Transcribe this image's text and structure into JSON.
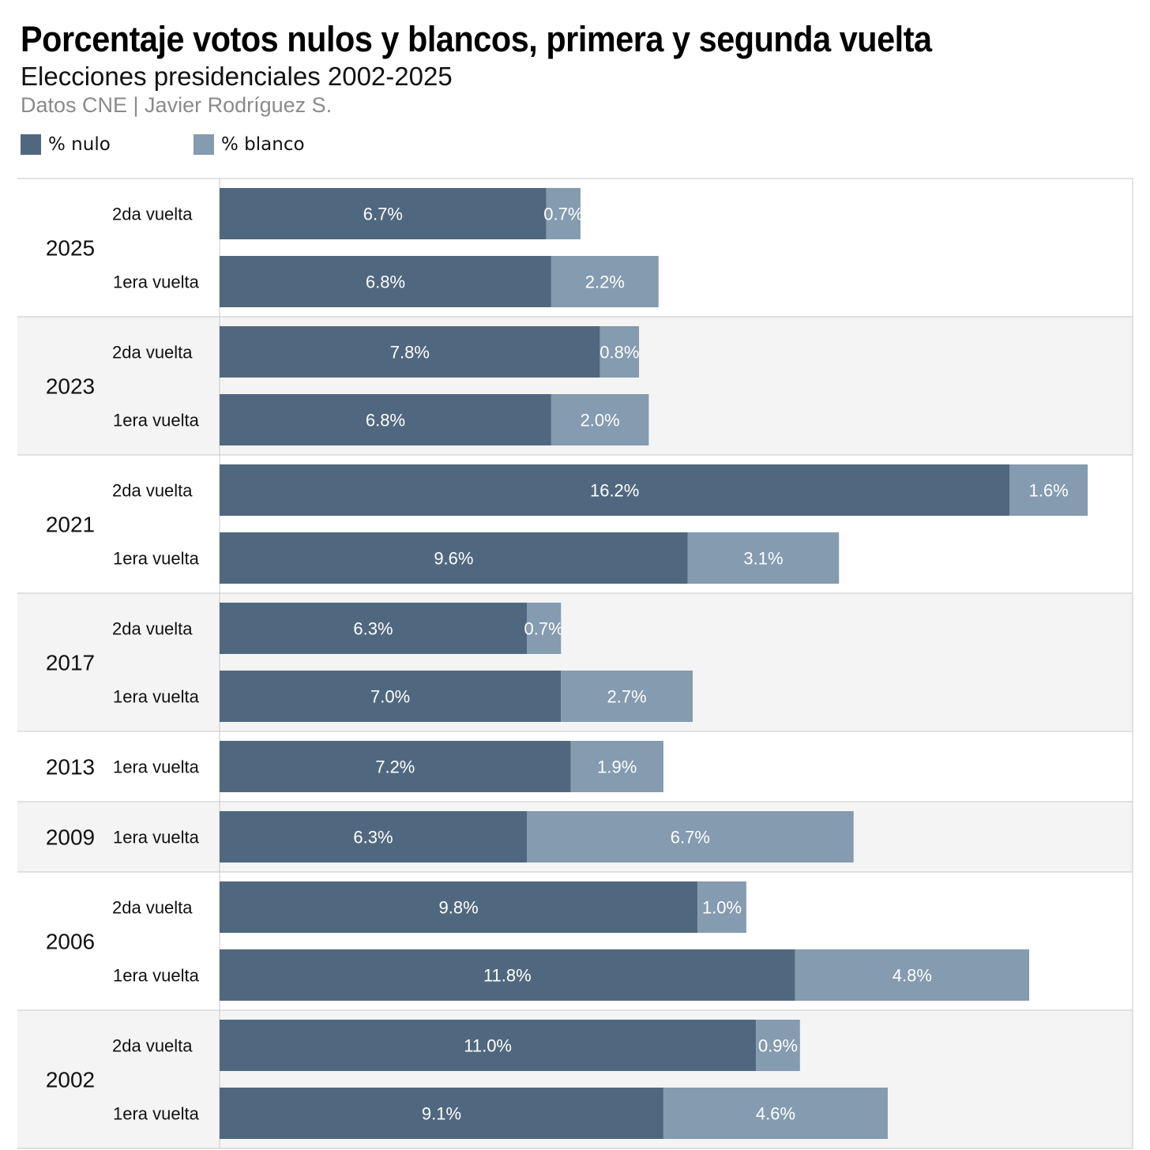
{
  "colors": {
    "nulo": "#50687f",
    "blanco": "#849bb0",
    "band_alt": "#f4f4f4",
    "border": "#c8c8c8",
    "bar_text": "#ffffff"
  },
  "chart_data": {
    "type": "bar",
    "orientation": "horizontal",
    "stacked": true,
    "title": "Porcentaje votos nulos y blancos, primera y segunda vuelta",
    "subtitle": "Elecciones presidenciales 2002-2025",
    "source": "Datos CNE | Javier Rodríguez S.",
    "xlim": [
      0,
      18
    ],
    "legend_position": "top-left",
    "grid": false,
    "series": [
      {
        "name": "% nulo",
        "key": "nulo"
      },
      {
        "name": "% blanco",
        "key": "blanco"
      }
    ],
    "groups": [
      {
        "year": "2025",
        "rows": [
          {
            "label": "2da vuelta",
            "nulo": 6.7,
            "blanco": 0.7,
            "nulo_label": "6.7%",
            "blanco_label": "0.7%"
          },
          {
            "label": "1era vuelta",
            "nulo": 6.8,
            "blanco": 2.2,
            "nulo_label": "6.8%",
            "blanco_label": "2.2%"
          }
        ]
      },
      {
        "year": "2023",
        "rows": [
          {
            "label": "2da vuelta",
            "nulo": 7.8,
            "blanco": 0.8,
            "nulo_label": "7.8%",
            "blanco_label": "0.8%"
          },
          {
            "label": "1era vuelta",
            "nulo": 6.8,
            "blanco": 2.0,
            "nulo_label": "6.8%",
            "blanco_label": "2.0%"
          }
        ]
      },
      {
        "year": "2021",
        "rows": [
          {
            "label": "2da vuelta",
            "nulo": 16.2,
            "blanco": 1.6,
            "nulo_label": "16.2%",
            "blanco_label": "1.6%"
          },
          {
            "label": "1era vuelta",
            "nulo": 9.6,
            "blanco": 3.1,
            "nulo_label": "9.6%",
            "blanco_label": "3.1%"
          }
        ]
      },
      {
        "year": "2017",
        "rows": [
          {
            "label": "2da vuelta",
            "nulo": 6.3,
            "blanco": 0.7,
            "nulo_label": "6.3%",
            "blanco_label": "0.7%"
          },
          {
            "label": "1era vuelta",
            "nulo": 7.0,
            "blanco": 2.7,
            "nulo_label": "7.0%",
            "blanco_label": "2.7%"
          }
        ]
      },
      {
        "year": "2013",
        "rows": [
          {
            "label": "1era vuelta",
            "nulo": 7.2,
            "blanco": 1.9,
            "nulo_label": "7.2%",
            "blanco_label": "1.9%"
          }
        ]
      },
      {
        "year": "2009",
        "rows": [
          {
            "label": "1era vuelta",
            "nulo": 6.3,
            "blanco": 6.7,
            "nulo_label": "6.3%",
            "blanco_label": "6.7%"
          }
        ]
      },
      {
        "year": "2006",
        "rows": [
          {
            "label": "2da vuelta",
            "nulo": 9.8,
            "blanco": 1.0,
            "nulo_label": "9.8%",
            "blanco_label": "1.0%"
          },
          {
            "label": "1era vuelta",
            "nulo": 11.8,
            "blanco": 4.8,
            "nulo_label": "11.8%",
            "blanco_label": "4.8%"
          }
        ]
      },
      {
        "year": "2002",
        "rows": [
          {
            "label": "2da vuelta",
            "nulo": 11.0,
            "blanco": 0.9,
            "nulo_label": "11.0%",
            "blanco_label": "0.9%"
          },
          {
            "label": "1era vuelta",
            "nulo": 9.1,
            "blanco": 4.6,
            "nulo_label": "9.1%",
            "blanco_label": "4.6%"
          }
        ]
      }
    ]
  }
}
